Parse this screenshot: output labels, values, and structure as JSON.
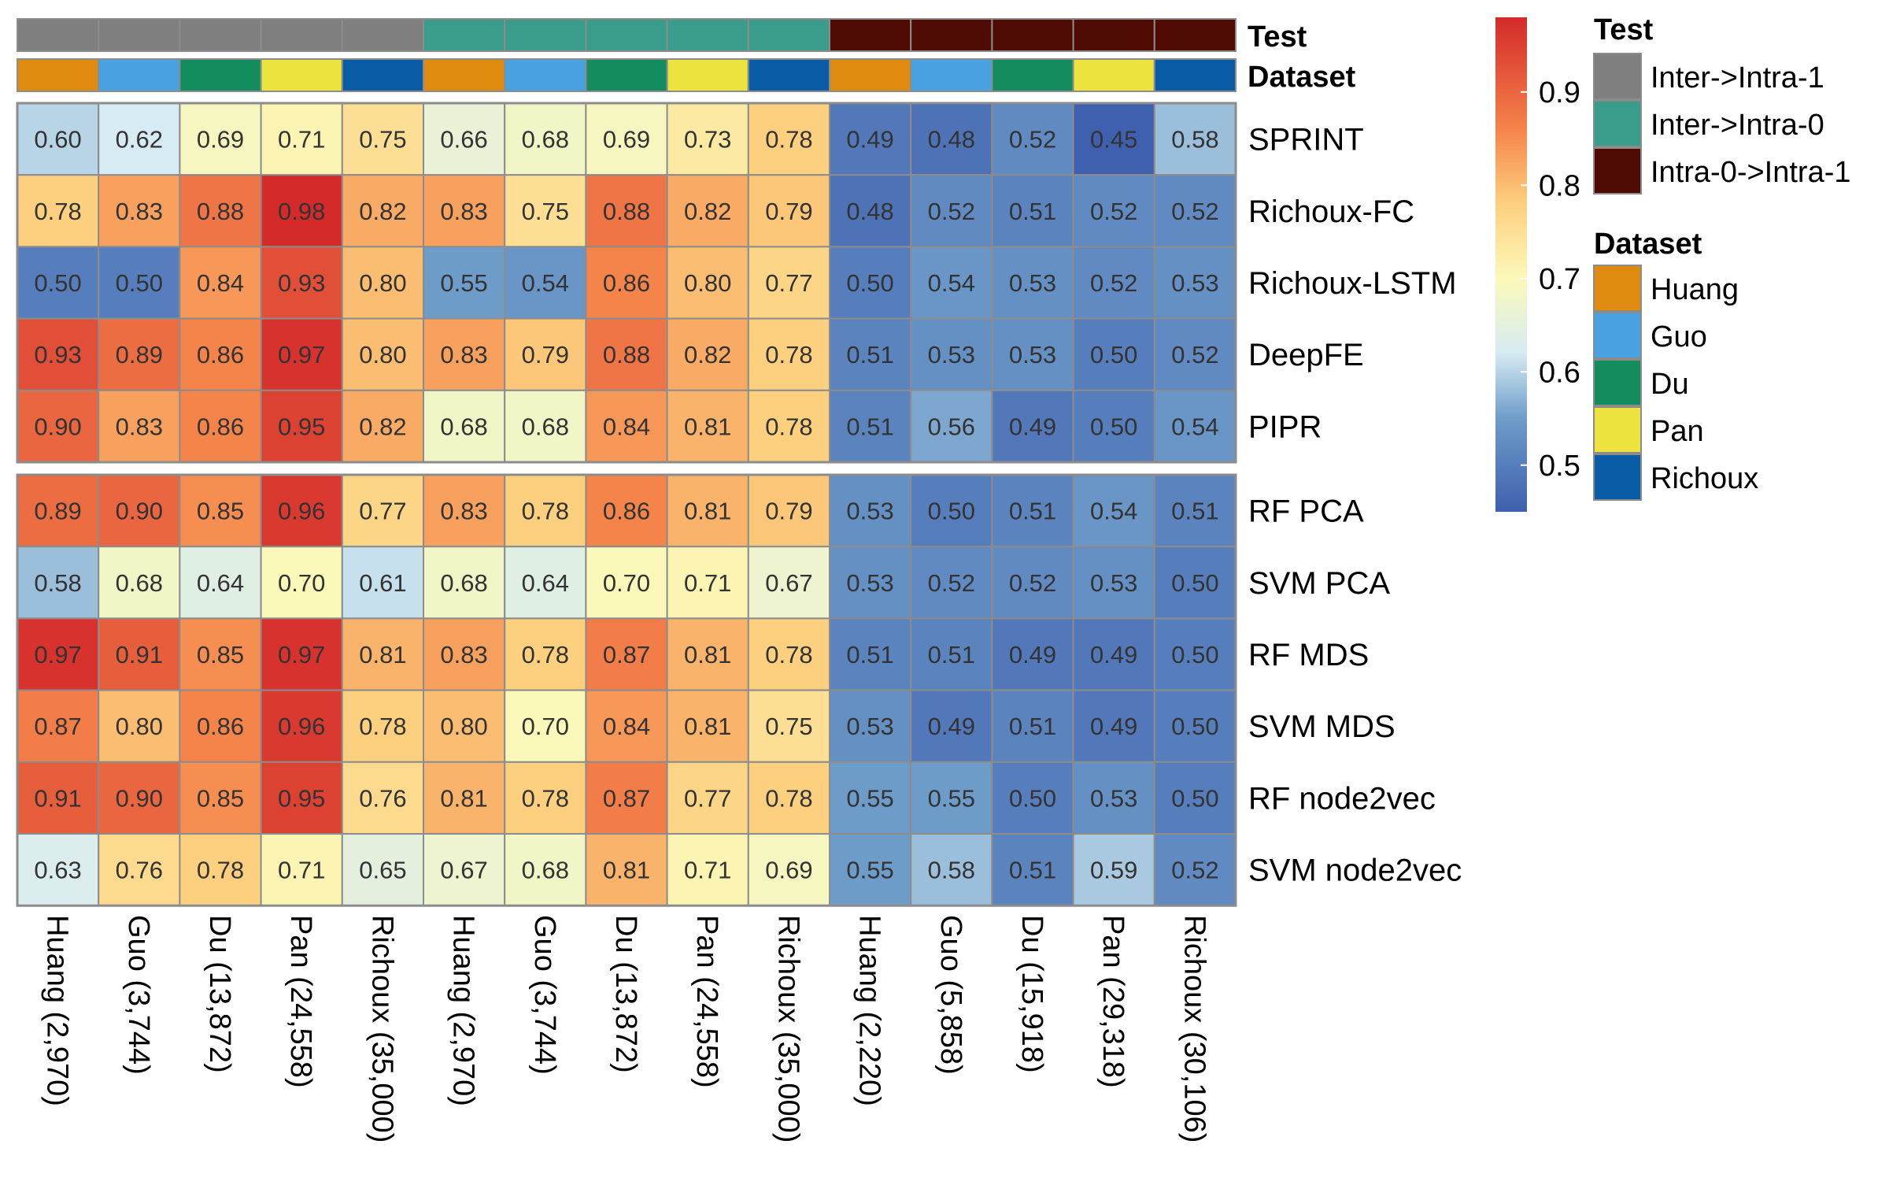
{
  "chart_data": {
    "type": "heatmap",
    "annotation_titles": {
      "test": "Test",
      "dataset": "Dataset"
    },
    "rows": [
      "SPRINT",
      "Richoux-FC",
      "Richoux-LSTM",
      "DeepFE",
      "PIPR",
      "RF PCA",
      "SVM PCA",
      "RF MDS",
      "SVM MDS",
      "RF node2vec",
      "SVM node2vec"
    ],
    "row_groups": [
      5,
      6
    ],
    "columns": [
      "Huang (2,970)",
      "Guo (3,744)",
      "Du (13,872)",
      "Pan (24,558)",
      "Richoux (35,000)",
      "Huang (2,970)",
      "Guo (3,744)",
      "Du (13,872)",
      "Pan (24,558)",
      "Richoux (35,000)",
      "Huang (2,220)",
      "Guo (5,858)",
      "Du (15,918)",
      "Pan (29,318)",
      "Richoux (30,106)"
    ],
    "column_test": [
      "Inter->Intra-1",
      "Inter->Intra-1",
      "Inter->Intra-1",
      "Inter->Intra-1",
      "Inter->Intra-1",
      "Inter->Intra-0",
      "Inter->Intra-0",
      "Inter->Intra-0",
      "Inter->Intra-0",
      "Inter->Intra-0",
      "Intra-0->Intra-1",
      "Intra-0->Intra-1",
      "Intra-0->Intra-1",
      "Intra-0->Intra-1",
      "Intra-0->Intra-1"
    ],
    "column_dataset": [
      "Huang",
      "Guo",
      "Du",
      "Pan",
      "Richoux",
      "Huang",
      "Guo",
      "Du",
      "Pan",
      "Richoux",
      "Huang",
      "Guo",
      "Du",
      "Pan",
      "Richoux"
    ],
    "values": [
      [
        0.6,
        0.62,
        0.69,
        0.71,
        0.75,
        0.66,
        0.68,
        0.69,
        0.73,
        0.78,
        0.49,
        0.48,
        0.52,
        0.45,
        0.58
      ],
      [
        0.78,
        0.83,
        0.88,
        0.98,
        0.82,
        0.83,
        0.75,
        0.88,
        0.82,
        0.79,
        0.48,
        0.52,
        0.51,
        0.52,
        0.52
      ],
      [
        0.5,
        0.5,
        0.84,
        0.93,
        0.8,
        0.55,
        0.54,
        0.86,
        0.8,
        0.77,
        0.5,
        0.54,
        0.53,
        0.52,
        0.53
      ],
      [
        0.93,
        0.89,
        0.86,
        0.97,
        0.8,
        0.83,
        0.79,
        0.88,
        0.82,
        0.78,
        0.51,
        0.53,
        0.53,
        0.5,
        0.52
      ],
      [
        0.9,
        0.83,
        0.86,
        0.95,
        0.82,
        0.68,
        0.68,
        0.84,
        0.81,
        0.78,
        0.51,
        0.56,
        0.49,
        0.5,
        0.54
      ],
      [
        0.89,
        0.9,
        0.85,
        0.96,
        0.77,
        0.83,
        0.78,
        0.86,
        0.81,
        0.79,
        0.53,
        0.5,
        0.51,
        0.54,
        0.51
      ],
      [
        0.58,
        0.68,
        0.64,
        0.7,
        0.61,
        0.68,
        0.64,
        0.7,
        0.71,
        0.67,
        0.53,
        0.52,
        0.52,
        0.53,
        0.5
      ],
      [
        0.97,
        0.91,
        0.85,
        0.97,
        0.81,
        0.83,
        0.78,
        0.87,
        0.81,
        0.78,
        0.51,
        0.51,
        0.49,
        0.49,
        0.5
      ],
      [
        0.87,
        0.8,
        0.86,
        0.96,
        0.78,
        0.8,
        0.7,
        0.84,
        0.81,
        0.75,
        0.53,
        0.49,
        0.51,
        0.49,
        0.5
      ],
      [
        0.91,
        0.9,
        0.85,
        0.95,
        0.76,
        0.81,
        0.78,
        0.87,
        0.77,
        0.78,
        0.55,
        0.55,
        0.5,
        0.53,
        0.5
      ],
      [
        0.63,
        0.76,
        0.78,
        0.71,
        0.65,
        0.67,
        0.68,
        0.81,
        0.71,
        0.69,
        0.55,
        0.58,
        0.51,
        0.59,
        0.52
      ]
    ],
    "value_range": [
      0.45,
      0.98
    ],
    "colorscale": [
      [
        0.45,
        "#3F60AE"
      ],
      [
        0.55,
        "#6E9CC9"
      ],
      [
        0.62,
        "#D6EBF3"
      ],
      [
        0.7,
        "#FBF9B9"
      ],
      [
        0.78,
        "#FDD07F"
      ],
      [
        0.86,
        "#F5844B"
      ],
      [
        0.98,
        "#D42A2A"
      ]
    ],
    "colorbar_ticks": [
      "0.5",
      "0.6",
      "0.7",
      "0.8",
      "0.9"
    ],
    "legend": {
      "position": "right",
      "test": {
        "title": "Test",
        "items": [
          {
            "label": "Inter->Intra-1",
            "color": "#7F7F7F"
          },
          {
            "label": "Inter->Intra-0",
            "color": "#3A9C8A"
          },
          {
            "label": "Intra-0->Intra-1",
            "color": "#4E0A03"
          }
        ]
      },
      "dataset": {
        "title": "Dataset",
        "items": [
          {
            "label": "Huang",
            "color": "#DE8B0F"
          },
          {
            "label": "Guo",
            "color": "#48A2E1"
          },
          {
            "label": "Du",
            "color": "#138D5D"
          },
          {
            "label": "Pan",
            "color": "#ECE33F"
          },
          {
            "label": "Richoux",
            "color": "#0B5CA6"
          }
        ]
      }
    }
  }
}
